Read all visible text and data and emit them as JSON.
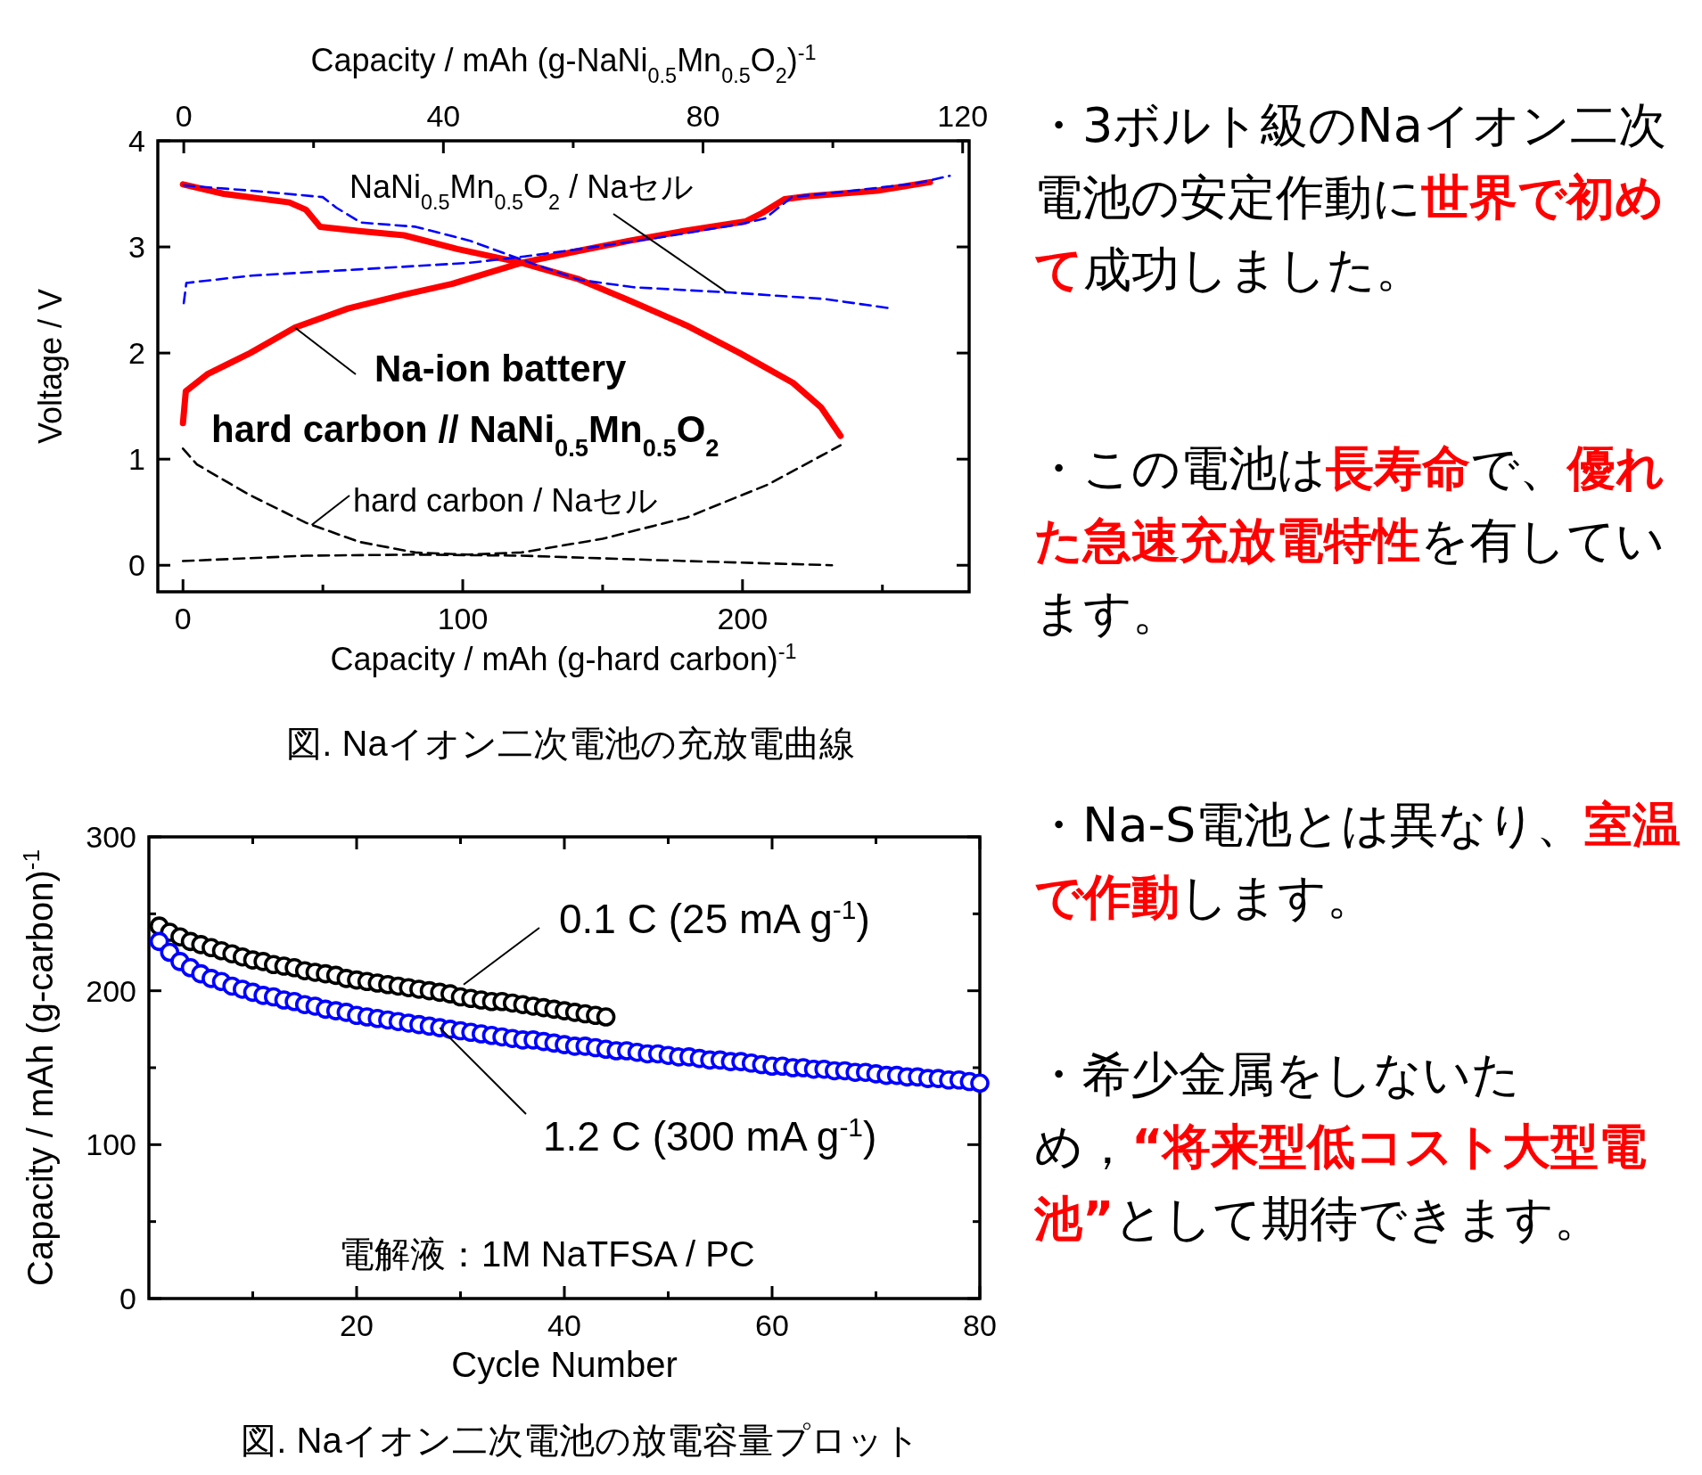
{
  "chart_data": [
    {
      "type": "line",
      "title": "図. Naイオン二次電池の充放電曲線",
      "xlabel": "Capacity / mAh (g-hard carbon)$^{-1}$",
      "x2label": "Capacity / mAh (g-NaNi$_{0.5}$Mn$_{0.5}$O$_{2}$)$^{-1}$",
      "ylabel": "Voltage / V",
      "xlim": [
        -9,
        281
      ],
      "x2lim": [
        -4,
        121
      ],
      "ylim": [
        -0.25,
        4
      ],
      "xticks": [
        0,
        {
          "value": 50,
          "label": null
        },
        100,
        {
          "value": 150,
          "label": null
        },
        200,
        {
          "value": 250,
          "label": null
        }
      ],
      "x2ticks": [
        0,
        {
          "value": 20,
          "label": null
        },
        40,
        {
          "value": 60,
          "label": null
        },
        80,
        {
          "value": 100,
          "label": null
        },
        120
      ],
      "yticks": [
        0,
        1,
        2,
        3,
        4
      ],
      "series": [
        {
          "color": "#ff0000",
          "line_style": "solid",
          "x": [
            0,
            1,
            8.7,
            24,
            40,
            59,
            79,
            96,
            106,
            121,
            141,
            160,
            179,
            201,
            207,
            215,
            224,
            248,
            267
          ],
          "values": [
            1.34,
            1.64,
            1.8,
            2.0,
            2.24,
            2.42,
            2.55,
            2.65,
            2.73,
            2.85,
            2.96,
            3.06,
            3.15,
            3.24,
            3.32,
            3.45,
            3.48,
            3.53,
            3.61
          ]
        },
        {
          "color": "#ff0000",
          "line_style": "solid",
          "x": [
            0,
            14.6,
            38,
            44,
            49,
            63,
            79,
            98,
            121,
            141,
            160,
            180,
            199,
            218,
            228,
            235
          ],
          "values": [
            3.59,
            3.5,
            3.42,
            3.35,
            3.19,
            3.15,
            3.11,
            2.98,
            2.85,
            2.7,
            2.49,
            2.26,
            2.0,
            1.72,
            1.49,
            1.22
          ]
        },
        {
          "color": "#0000ff",
          "line_style": "dashed",
          "axis": "x2",
          "x": [
            0,
            0.4,
            10.5,
            27.3,
            44,
            52.5,
            61,
            73.5,
            86.1,
            89.6,
            93.7,
            103,
            113,
            118
          ],
          "values": [
            2.47,
            2.66,
            2.73,
            2.79,
            2.85,
            2.91,
            2.98,
            3.09,
            3.22,
            3.27,
            3.47,
            3.53,
            3.6,
            3.67
          ]
        },
        {
          "color": "#0000ff",
          "line_style": "dashed",
          "axis": "x2",
          "x": [
            0,
            10.5,
            21.4,
            23.5,
            27.3,
            35.7,
            44,
            52.5,
            61,
            69.3,
            84.4,
            98.7,
            109
          ],
          "values": [
            3.58,
            3.53,
            3.47,
            3.37,
            3.23,
            3.19,
            3.06,
            2.87,
            2.69,
            2.62,
            2.57,
            2.51,
            2.42
          ]
        },
        {
          "color": "#000000",
          "line_style": "dashed",
          "x": [
            0,
            44,
            83,
            121,
            180,
            232
          ],
          "values": [
            0.04,
            0.09,
            0.1,
            0.09,
            0.04,
            0.0
          ]
        },
        {
          "color": "#000000",
          "line_style": "dashed",
          "x": [
            0,
            5,
            24,
            44,
            63,
            83,
            102,
            121,
            150,
            180,
            209,
            235
          ],
          "values": [
            1.1,
            0.95,
            0.66,
            0.4,
            0.22,
            0.12,
            0.1,
            0.12,
            0.25,
            0.45,
            0.76,
            1.13
          ]
        }
      ],
      "annotations": [
        {
          "text": "NaNi$_{0.5}$Mn$_{0.5}$O$_{2}$ / Naセル",
          "x": 194,
          "y": 2.58
        },
        {
          "text": "**Na-ion battery**",
          "x": 40,
          "y": 2.24
        },
        "**hard carbon // NaNi$_{0.5}$Mn$_{0.5}$O$_{2}$**",
        {
          "text": "hard carbon / Naセル",
          "x": 46,
          "y": 0.38
        }
      ]
    },
    {
      "type": "scatter",
      "title": "図.  Naイオン二次電池の放電容量プロット",
      "xlabel": "Cycle Number",
      "ylabel": "Capacity / mAh (g-carbon)$^{-1}$",
      "marker": "circle",
      "xlim": [
        0,
        80
      ],
      "ylim": [
        0,
        300
      ],
      "xticks": [
        {
          "value": 10,
          "label": null
        },
        20,
        {
          "value": 30,
          "label": null
        },
        40,
        {
          "value": 50,
          "label": null
        },
        60,
        {
          "value": 70,
          "label": null
        },
        80
      ],
      "yticks": [
        0,
        {
          "value": 50,
          "label": null
        },
        100,
        {
          "value": 150,
          "label": null
        },
        200,
        {
          "value": 250,
          "label": null
        },
        300
      ],
      "series": [
        {
          "color": "#000000",
          "x": [
            1,
            2,
            3,
            4,
            5,
            6,
            7,
            8,
            9,
            10,
            11,
            12,
            13,
            14,
            15,
            16,
            17,
            18,
            19,
            20,
            21,
            22,
            23,
            24,
            25,
            26,
            27,
            28,
            29,
            30,
            31,
            32,
            33,
            34,
            35,
            36,
            37,
            38,
            39,
            40,
            41,
            42,
            43,
            44
          ],
          "values": [
            242,
            238,
            235,
            232,
            230,
            228,
            226,
            224,
            222,
            220,
            219,
            217,
            216,
            215,
            213,
            212,
            211,
            210,
            208,
            207,
            206,
            205,
            204,
            203,
            202,
            201,
            200,
            199,
            198,
            196,
            195,
            194,
            193,
            193,
            192,
            191,
            190,
            189,
            188,
            187,
            186,
            185,
            184,
            183
          ]
        },
        {
          "color": "#0000ff",
          "x": [
            1,
            2,
            3,
            4,
            5,
            6,
            7,
            8,
            9,
            10,
            11,
            12,
            13,
            14,
            15,
            16,
            17,
            18,
            19,
            20,
            21,
            22,
            23,
            24,
            25,
            26,
            27,
            28,
            29,
            30,
            31,
            32,
            33,
            34,
            35,
            36,
            37,
            38,
            39,
            40,
            41,
            42,
            43,
            44,
            45,
            46,
            47,
            48,
            49,
            50,
            51,
            52,
            53,
            54,
            55,
            56,
            57,
            58,
            59,
            60,
            61,
            62,
            63,
            64,
            65,
            66,
            67,
            68,
            69,
            70,
            71,
            72,
            73,
            74,
            75,
            76,
            77,
            78,
            79,
            80
          ],
          "values": [
            232,
            225,
            219,
            215,
            211,
            208,
            206,
            203,
            201,
            199,
            197,
            196,
            194,
            193,
            191,
            190,
            188,
            187,
            186,
            184,
            183,
            182,
            181,
            180,
            179,
            178,
            177,
            176,
            175,
            174,
            173,
            172,
            171,
            170,
            169,
            168,
            168,
            167,
            166,
            165,
            164,
            164,
            163,
            162,
            161,
            161,
            160,
            159,
            159,
            158,
            157,
            157,
            156,
            155,
            155,
            154,
            154,
            153,
            152,
            151,
            151,
            150,
            150,
            149,
            149,
            148,
            148,
            147,
            147,
            146,
            145,
            145,
            144,
            144,
            143,
            143,
            142,
            142,
            141,
            140
          ]
        }
      ],
      "annotations": [
        {
          "text": "0.1 C (25 mA g$^{-1}$)",
          "x": 30.3,
          "y": 204
        },
        {
          "text": "1.2 C (300 mA g$^{-1}$)",
          "x": 28,
          "y": 176
        },
        "電解液：1M NaTFSA / PC"
      ]
    },
    {
      "type": "other",
      "annotations": [
        "・3ボルト級のNaイオン二次電池の安定作動に**世界で初めて**成功しました。",
        "・この電池は**長寿命**で、**優れた急速充放電特性**を有しています。",
        "・Na-S電池とは異なり、**室温で作動**します。",
        "・希少金属をしないため，**“将来型低コスト大型電池”**として期待できます。"
      ]
    }
  ]
}
